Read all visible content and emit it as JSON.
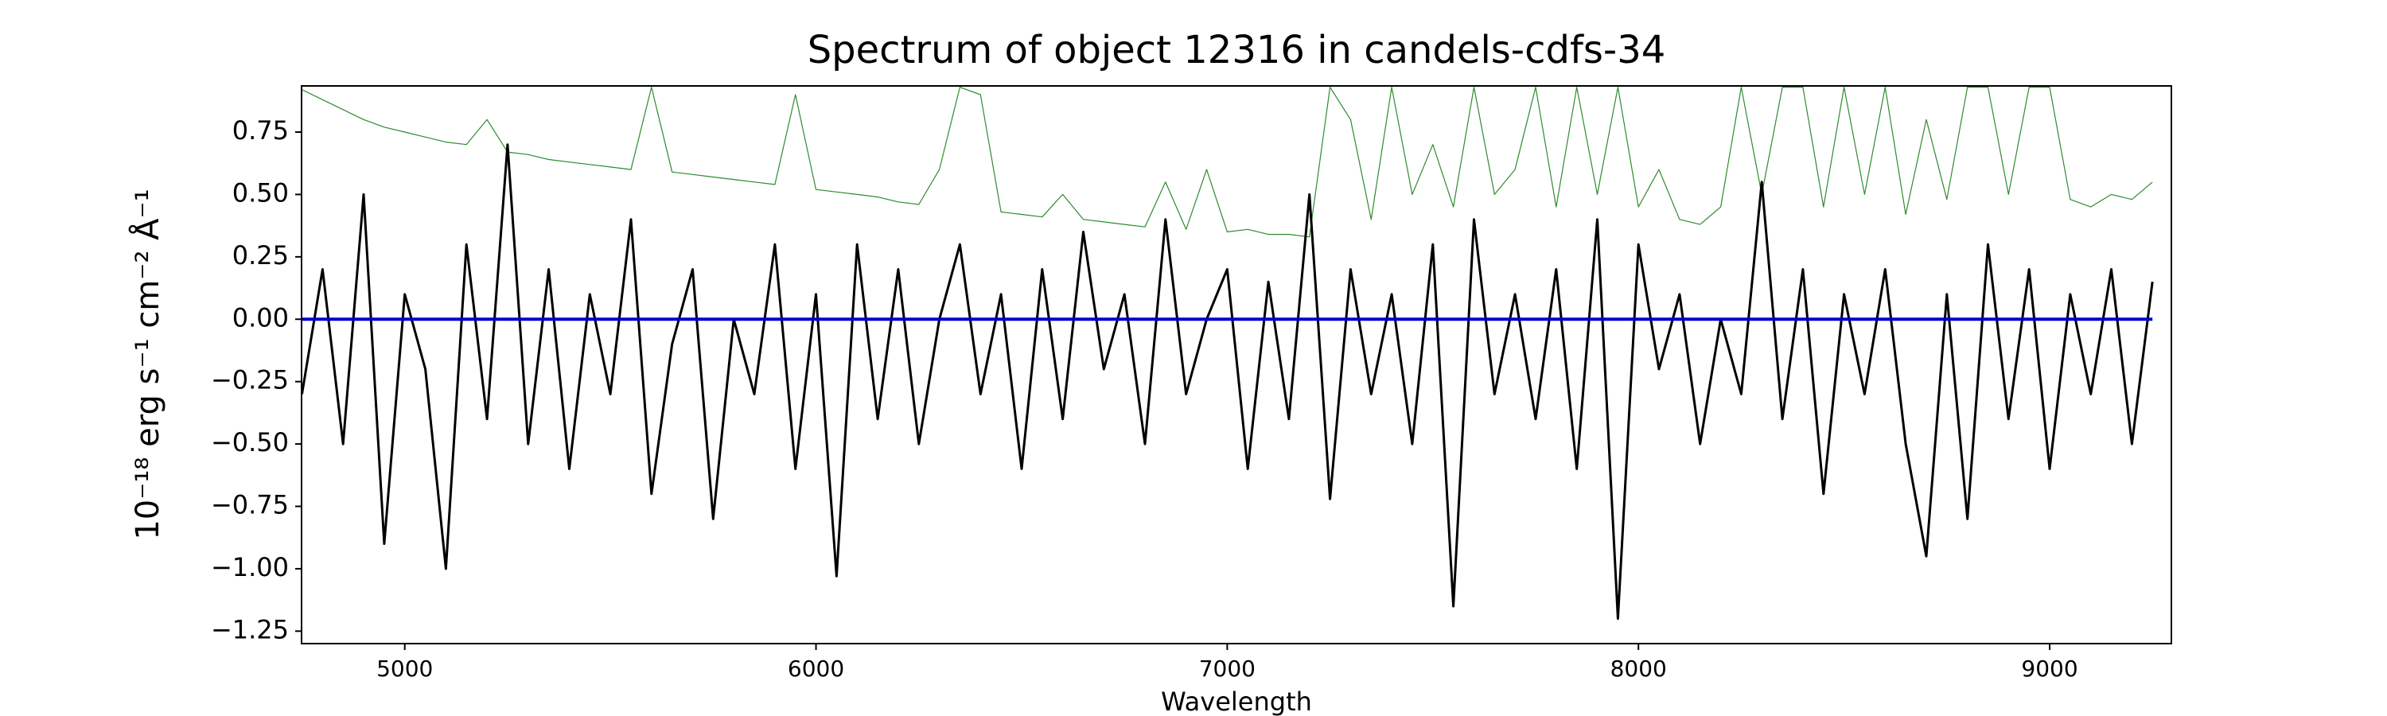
{
  "chart_data": {
    "type": "line",
    "title": "Spectrum of object 12316 in candels-cdfs-34",
    "xlabel": "Wavelength",
    "ylabel": "10⁻¹⁸ erg s⁻¹ cm⁻² Å⁻¹",
    "x": [
      4750,
      4800,
      4850,
      4900,
      4950,
      5000,
      5050,
      5100,
      5150,
      5200,
      5250,
      5300,
      5350,
      5400,
      5450,
      5500,
      5550,
      5600,
      5650,
      5700,
      5750,
      5800,
      5850,
      5900,
      5950,
      6000,
      6050,
      6100,
      6150,
      6200,
      6250,
      6300,
      6350,
      6400,
      6450,
      6500,
      6550,
      6600,
      6650,
      6700,
      6750,
      6800,
      6850,
      6900,
      6950,
      7000,
      7050,
      7100,
      7150,
      7200,
      7250,
      7300,
      7350,
      7400,
      7450,
      7500,
      7550,
      7600,
      7650,
      7700,
      7750,
      7800,
      7850,
      7900,
      7950,
      8000,
      8050,
      8100,
      8150,
      8200,
      8250,
      8300,
      8350,
      8400,
      8450,
      8500,
      8550,
      8600,
      8650,
      8700,
      8750,
      8800,
      8850,
      8900,
      8950,
      9000,
      9050,
      9100,
      9150,
      9200,
      9250
    ],
    "series": [
      {
        "color": "#2e8b2e",
        "width": 1.2,
        "values": [
          0.92,
          0.88,
          0.84,
          0.8,
          0.77,
          0.75,
          0.73,
          0.71,
          0.7,
          0.8,
          0.67,
          0.66,
          0.64,
          0.63,
          0.62,
          0.61,
          0.6,
          0.93,
          0.59,
          0.58,
          0.57,
          0.56,
          0.55,
          0.54,
          0.9,
          0.52,
          0.51,
          0.5,
          0.49,
          0.47,
          0.46,
          0.6,
          0.93,
          0.9,
          0.43,
          0.42,
          0.41,
          0.5,
          0.4,
          0.39,
          0.38,
          0.37,
          0.55,
          0.36,
          0.6,
          0.35,
          0.36,
          0.34,
          0.34,
          0.33,
          0.93,
          0.8,
          0.4,
          0.93,
          0.5,
          0.7,
          0.45,
          0.93,
          0.5,
          0.6,
          0.93,
          0.45,
          0.93,
          0.5,
          0.93,
          0.45,
          0.6,
          0.4,
          0.38,
          0.45,
          0.93,
          0.5,
          0.93,
          0.93,
          0.45,
          0.93,
          0.5,
          0.93,
          0.42,
          0.8,
          0.48,
          0.93,
          0.93,
          0.5,
          0.93,
          0.93,
          0.48,
          0.45,
          0.5,
          0.48,
          0.55
        ]
      },
      {
        "color": "#000000",
        "width": 3,
        "values": [
          -0.3,
          0.2,
          -0.5,
          0.5,
          -0.9,
          0.1,
          -0.2,
          -1.0,
          0.3,
          -0.4,
          0.7,
          -0.5,
          0.2,
          -0.6,
          0.1,
          -0.3,
          0.4,
          -0.7,
          -0.1,
          0.2,
          -0.8,
          0.0,
          -0.3,
          0.3,
          -0.6,
          0.1,
          -1.03,
          0.3,
          -0.4,
          0.2,
          -0.5,
          0.0,
          0.3,
          -0.3,
          0.1,
          -0.6,
          0.2,
          -0.4,
          0.35,
          -0.2,
          0.1,
          -0.5,
          0.4,
          -0.3,
          0.0,
          0.2,
          -0.6,
          0.15,
          -0.4,
          0.5,
          -0.72,
          0.2,
          -0.3,
          0.1,
          -0.5,
          0.3,
          -1.15,
          0.4,
          -0.3,
          0.1,
          -0.4,
          0.2,
          -0.6,
          0.4,
          -1.2,
          0.3,
          -0.2,
          0.1,
          -0.5,
          0.0,
          -0.3,
          0.55,
          -0.4,
          0.2,
          -0.7,
          0.1,
          -0.3,
          0.2,
          -0.5,
          -0.95,
          0.1,
          -0.8,
          0.3,
          -0.4,
          0.2,
          -0.6,
          0.1,
          -0.3,
          0.2,
          -0.5,
          0.15
        ]
      },
      {
        "color": "#0000cc",
        "width": 4,
        "values": [
          0,
          0,
          0,
          0,
          0,
          0,
          0,
          0,
          0,
          0,
          0,
          0,
          0,
          0,
          0,
          0,
          0,
          0,
          0,
          0,
          0,
          0,
          0,
          0,
          0,
          0,
          0,
          0,
          0,
          0,
          0,
          0,
          0,
          0,
          0,
          0,
          0,
          0,
          0,
          0,
          0,
          0,
          0,
          0,
          0,
          0,
          0,
          0,
          0,
          0,
          0,
          0,
          0,
          0,
          0,
          0,
          0,
          0,
          0,
          0,
          0,
          0,
          0,
          0,
          0,
          0,
          0,
          0,
          0,
          0,
          0,
          0,
          0,
          0,
          0,
          0,
          0,
          0,
          0,
          0,
          0,
          0,
          0,
          0,
          0,
          0,
          0,
          0,
          0,
          0,
          0
        ]
      }
    ],
    "xlim": [
      4749,
      9296
    ],
    "ylim": [
      -1.3,
      0.935
    ],
    "xticks": [
      5000,
      6000,
      7000,
      8000,
      9000
    ],
    "yticks": [
      {
        "value": -1.25,
        "label": "−1.25"
      },
      {
        "value": -1.0,
        "label": "−1.00"
      },
      {
        "value": -0.75,
        "label": "−0.75"
      },
      {
        "value": -0.5,
        "label": "−0.50"
      },
      {
        "value": -0.25,
        "label": "−0.25"
      },
      {
        "value": 0,
        "label": "0.00"
      },
      {
        "value": 0.25,
        "label": "0.25"
      },
      {
        "value": 0.5,
        "label": "0.50"
      },
      {
        "value": 0.75,
        "label": "0.75"
      }
    ],
    "grid": false
  }
}
